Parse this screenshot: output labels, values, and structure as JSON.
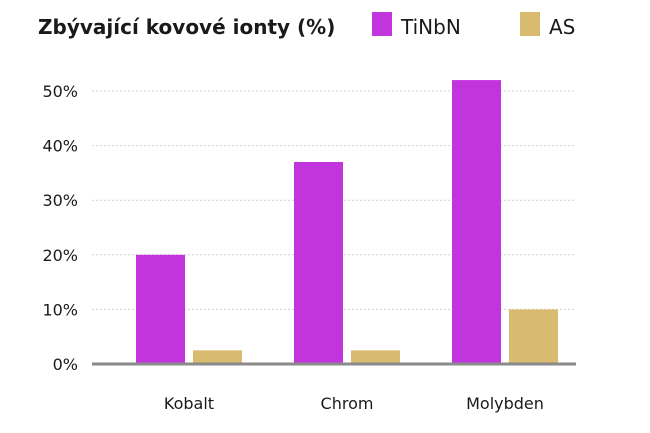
{
  "chart_data": {
    "type": "bar",
    "title": "Zbývající kovové ionty (%)",
    "categories": [
      "Kobalt",
      "Chrom",
      "Molybden"
    ],
    "series": [
      {
        "name": "TiNbN",
        "values": [
          20,
          37,
          52
        ],
        "color": "#c235dc"
      },
      {
        "name": "AS",
        "values": [
          2.5,
          2.5,
          10
        ],
        "color": "#d8bb6f"
      }
    ],
    "ylim": [
      0,
      50
    ],
    "yticks": [
      0,
      10,
      20,
      30,
      40,
      50
    ],
    "ytick_labels": [
      "0%",
      "10%",
      "20%",
      "30%",
      "40%",
      "50%"
    ],
    "xlabel": "",
    "ylabel": "",
    "grid": true,
    "legend": "top-right"
  }
}
